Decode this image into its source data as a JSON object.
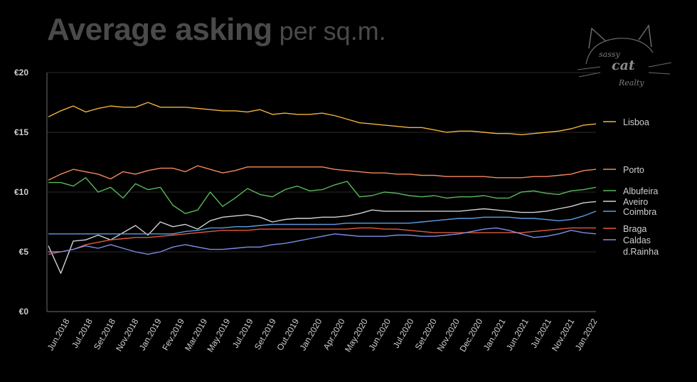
{
  "title": {
    "bold": "Average asking",
    "light": "per sq.m."
  },
  "logo": {
    "line1": "sassy",
    "line2": "cat",
    "line3": "Realty"
  },
  "colors": {
    "background": "#000000",
    "title": "#4a4a4a",
    "axis": "#5a5a5a",
    "grid": "#2a2a2a",
    "label": "#cfcfcf",
    "logo": "#6a6a6a"
  },
  "chart_data": {
    "type": "line",
    "title": "Average asking per sq.m.",
    "xlabel": "",
    "ylabel": "",
    "ylim": [
      0,
      20
    ],
    "yticks": [
      0,
      5,
      10,
      15,
      20
    ],
    "ytick_labels": [
      "€0",
      "€5",
      "€10",
      "€15",
      "€20"
    ],
    "grid": true,
    "legend": "right, labels at line ends",
    "x_count": 45,
    "x_tick_labels": [
      "Jun.2018",
      "Jul.2018",
      "Set.2018",
      "Nov.2018",
      "Jan.2019",
      "Fev.2019",
      "Mar.2019",
      "May.2019",
      "Jul.2019",
      "Set.2019",
      "Out.2019",
      "Jan.2020",
      "Apr.2020",
      "May.2020",
      "Jun.2020",
      "Jul.2020",
      "Set.2020",
      "Nov.2020",
      "Dec.2020",
      "Jan.2021",
      "Jun.2021",
      "Jul.2021",
      "Nov.2021",
      "Jan.2022"
    ],
    "series": [
      {
        "name": "Lisboa",
        "color": "#f2b33d",
        "values": [
          16.3,
          16.8,
          17.2,
          16.7,
          17.0,
          17.2,
          17.1,
          17.1,
          17.5,
          17.1,
          17.1,
          17.1,
          17.0,
          16.9,
          16.8,
          16.8,
          16.7,
          16.9,
          16.5,
          16.6,
          16.5,
          16.5,
          16.6,
          16.4,
          16.1,
          15.8,
          15.7,
          15.6,
          15.5,
          15.4,
          15.4,
          15.2,
          15.0,
          15.1,
          15.1,
          15.0,
          14.9,
          14.9,
          14.8,
          14.9,
          15.0,
          15.1,
          15.3,
          15.6,
          15.7
        ]
      },
      {
        "name": "Porto",
        "color": "#f4895a",
        "values": [
          11.0,
          11.5,
          11.9,
          11.7,
          11.5,
          11.1,
          11.7,
          11.5,
          11.8,
          12.0,
          12.0,
          11.7,
          12.2,
          11.9,
          11.6,
          11.8,
          12.1,
          12.1,
          12.1,
          12.1,
          12.1,
          12.1,
          12.1,
          11.9,
          11.8,
          11.7,
          11.6,
          11.6,
          11.5,
          11.5,
          11.4,
          11.4,
          11.3,
          11.3,
          11.3,
          11.3,
          11.2,
          11.2,
          11.2,
          11.3,
          11.3,
          11.4,
          11.5,
          11.8,
          11.9
        ]
      },
      {
        "name": "Albufeira",
        "color": "#59b85a",
        "values": [
          10.8,
          10.8,
          10.5,
          11.2,
          10.0,
          10.4,
          9.5,
          10.7,
          10.2,
          10.4,
          8.9,
          8.2,
          8.5,
          10.0,
          8.8,
          9.5,
          10.3,
          9.8,
          9.6,
          10.2,
          10.5,
          10.1,
          10.2,
          10.6,
          10.9,
          9.6,
          9.7,
          10.0,
          9.9,
          9.7,
          9.6,
          9.7,
          9.5,
          9.6,
          9.6,
          9.7,
          9.5,
          9.5,
          10.0,
          10.1,
          9.9,
          9.8,
          10.1,
          10.2,
          10.4
        ]
      },
      {
        "name": "Aveiro",
        "color": "#d2d2d2",
        "values": [
          5.5,
          3.2,
          5.9,
          6.0,
          6.4,
          6.0,
          6.6,
          7.2,
          6.4,
          7.5,
          7.1,
          7.3,
          6.9,
          7.6,
          7.9,
          8.0,
          8.1,
          7.9,
          7.5,
          7.7,
          7.8,
          7.8,
          7.9,
          7.9,
          8.0,
          8.2,
          8.5,
          8.4,
          8.4,
          8.4,
          8.4,
          8.4,
          8.4,
          8.4,
          8.5,
          8.6,
          8.5,
          8.4,
          8.3,
          8.3,
          8.4,
          8.6,
          8.8,
          9.1,
          9.2
        ]
      },
      {
        "name": "Coimbra",
        "color": "#5b9ee6",
        "values": [
          6.5,
          6.5,
          6.5,
          6.5,
          6.5,
          6.5,
          6.5,
          6.5,
          6.5,
          6.5,
          6.5,
          6.7,
          6.8,
          7.0,
          7.0,
          7.1,
          7.1,
          7.2,
          7.3,
          7.3,
          7.3,
          7.3,
          7.3,
          7.3,
          7.4,
          7.4,
          7.4,
          7.4,
          7.4,
          7.4,
          7.5,
          7.6,
          7.7,
          7.8,
          7.8,
          7.9,
          7.9,
          7.9,
          7.8,
          7.8,
          7.7,
          7.6,
          7.7,
          8.0,
          8.4
        ]
      },
      {
        "name": "Braga",
        "color": "#e45b3a",
        "values": [
          4.8,
          5.0,
          5.2,
          5.6,
          5.8,
          6.0,
          6.1,
          6.2,
          6.2,
          6.3,
          6.4,
          6.5,
          6.6,
          6.7,
          6.8,
          6.8,
          6.8,
          6.9,
          6.9,
          6.9,
          6.9,
          6.9,
          6.9,
          6.9,
          6.9,
          7.0,
          7.0,
          6.9,
          6.9,
          6.8,
          6.7,
          6.6,
          6.6,
          6.6,
          6.6,
          6.6,
          6.6,
          6.6,
          6.6,
          6.7,
          6.8,
          6.9,
          7.0,
          7.0,
          7.0
        ]
      },
      {
        "name": "Caldas\nd.Rainha",
        "color": "#7a8fe8",
        "values": [
          5.0,
          5.0,
          5.2,
          5.5,
          5.3,
          5.6,
          5.3,
          5.0,
          4.8,
          5.0,
          5.4,
          5.6,
          5.4,
          5.2,
          5.2,
          5.3,
          5.4,
          5.4,
          5.6,
          5.7,
          5.9,
          6.1,
          6.3,
          6.5,
          6.4,
          6.3,
          6.3,
          6.3,
          6.4,
          6.4,
          6.3,
          6.3,
          6.4,
          6.5,
          6.7,
          6.9,
          7.0,
          6.8,
          6.5,
          6.2,
          6.3,
          6.5,
          6.8,
          6.6,
          6.5
        ]
      }
    ],
    "end_labels": [
      "Lisboa",
      "Porto",
      "Albufeira",
      "Aveiro",
      "Coimbra",
      "Braga",
      "Caldas",
      "d.Rainha"
    ]
  }
}
